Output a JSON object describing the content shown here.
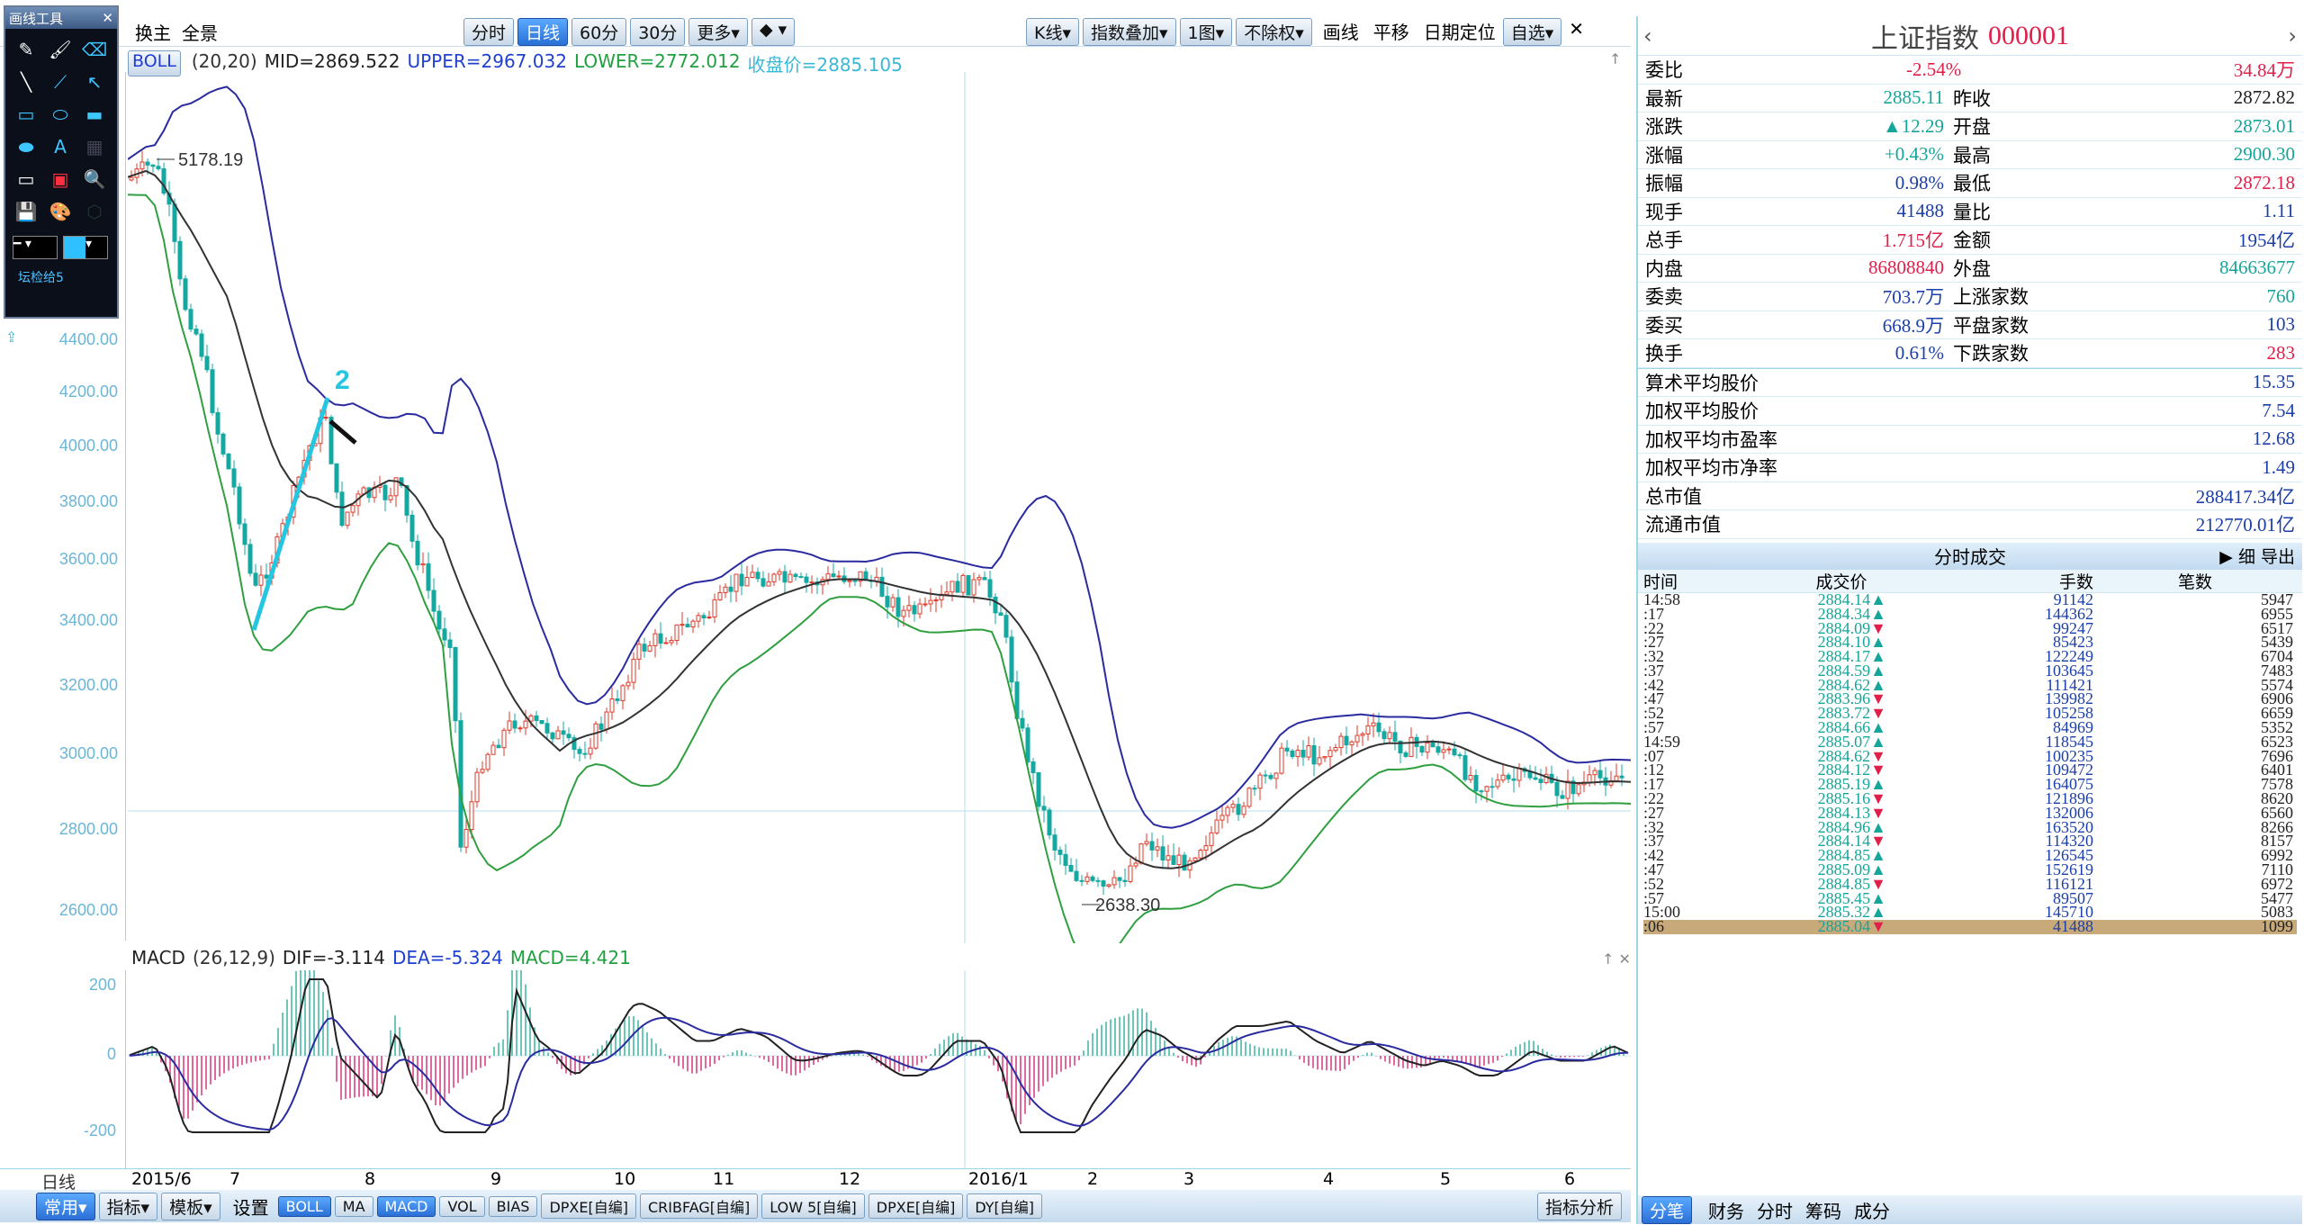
{
  "toolbar_top": {
    "left_tabs": [
      "换主",
      "全景"
    ],
    "period_tabs": [
      "分时",
      "日线",
      "60分",
      "30分",
      "更多▾",
      "◆ ▾"
    ],
    "right_tabs": [
      "K线▾",
      "指数叠加▾",
      "1图▾",
      "不除权▾",
      "画线",
      "平移",
      "日期定位",
      "自选▾"
    ]
  },
  "indicator_line": {
    "name": "BOLL",
    "params": "(20,20)",
    "mid": "MID=2869.522",
    "upper": "UPPER=2967.032",
    "lower": "LOWER=2772.012",
    "close": "收盘价=2885.105",
    "sym_color": "#1e3cd8",
    "upper_color": "#2040d0",
    "lower_color": "#20a040"
  },
  "drawing_palette": {
    "title": "画线工具",
    "footer": "坛检给5"
  },
  "main_chart": {
    "y_labels": [
      "4400.00",
      "4200.00",
      "4000.00",
      "3800.00",
      "3600.00",
      "3400.00",
      "3200.00",
      "3000.00",
      "2800.00",
      "2600.00"
    ],
    "annotations": {
      "high_label": "5178.19",
      "low_label": "2638.30",
      "marker_label": "2"
    }
  },
  "macd": {
    "name": "MACD",
    "params": "(26,12,9)",
    "dif": "DIF=-3.114",
    "dea": "DEA=-5.324",
    "macd": "MACD=4.421",
    "y_labels": [
      "200",
      "0",
      "-200"
    ]
  },
  "x_axis": {
    "period": "日线",
    "labels": [
      "2015/6",
      "7",
      "8",
      "9",
      "10",
      "11",
      "12",
      "2016/1",
      "2",
      "3",
      "4",
      "5",
      "6"
    ]
  },
  "bottom_tabs": {
    "left": [
      "常用▾",
      "指标▾",
      "模板▾",
      "设置"
    ],
    "indicators": [
      "BOLL",
      "MA",
      "MACD",
      "VOL",
      "BIAS",
      "DPXE[自编]",
      "CRIBFAG[自编]",
      "LOW 5[自编]",
      "DPXE[自编]",
      "DY[自编]"
    ],
    "right": "指标分析"
  },
  "quote": {
    "title": "上证指数",
    "code": "000001",
    "weibi": {
      "label": "委比",
      "value": "-2.54%",
      "value2": "34.84万"
    },
    "rows": [
      {
        "l1": "最新",
        "v1": "2885.11",
        "l2": "昨收",
        "v2": "2872.82",
        "c1": "green",
        "c2": "dark"
      },
      {
        "l1": "涨跌",
        "v1": "▲12.29",
        "l2": "开盘",
        "v2": "2873.01",
        "c1": "green",
        "c2": "green"
      },
      {
        "l1": "涨幅",
        "v1": "+0.43%",
        "l2": "最高",
        "v2": "2900.30",
        "c1": "green",
        "c2": "green"
      },
      {
        "l1": "振幅",
        "v1": "0.98%",
        "l2": "最低",
        "v2": "2872.18",
        "c1": "blue",
        "c2": "red"
      },
      {
        "l1": "现手",
        "v1": "41488",
        "l2": "量比",
        "v2": "1.11",
        "c1": "blue",
        "c2": "blue"
      },
      {
        "l1": "总手",
        "v1": "1.715亿",
        "l2": "金额",
        "v2": "1954亿",
        "c1": "red",
        "c2": "blue"
      },
      {
        "l1": "内盘",
        "v1": "86808840",
        "l2": "外盘",
        "v2": "84663677",
        "c1": "red",
        "c2": "green"
      },
      {
        "l1": "委卖",
        "v1": "703.7万",
        "l2": "上涨家数",
        "v2": "760",
        "c1": "blue",
        "c2": "green"
      },
      {
        "l1": "委买",
        "v1": "668.9万",
        "l2": "平盘家数",
        "v2": "103",
        "c1": "blue",
        "c2": "blue"
      },
      {
        "l1": "换手",
        "v1": "0.61%",
        "l2": "下跌家数",
        "v2": "283",
        "c1": "blue",
        "c2": "red"
      }
    ],
    "stats": [
      {
        "label": "算术平均股价",
        "value": "15.35"
      },
      {
        "label": "加权平均股价",
        "value": "7.54"
      },
      {
        "label": "加权平均市盈率",
        "value": "12.68"
      },
      {
        "label": "加权平均市净率",
        "value": "1.49"
      },
      {
        "label": "总市值",
        "value": "288417.34亿"
      },
      {
        "label": "流通市值",
        "value": "212770.01亿"
      }
    ]
  },
  "trades": {
    "title": "分时成交",
    "actions": "▶ 细 导出",
    "headers": [
      "时间",
      "成交价",
      "手数",
      "笔数"
    ],
    "rows": [
      {
        "t": "14:58",
        "p": "2884.14",
        "d": "▲",
        "v": "91142",
        "n": "5947"
      },
      {
        "t": ":17",
        "p": "2884.34",
        "d": "▲",
        "v": "144362",
        "n": "6955"
      },
      {
        "t": ":22",
        "p": "2884.09",
        "d": "▼",
        "v": "99247",
        "n": "6517"
      },
      {
        "t": ":27",
        "p": "2884.10",
        "d": "▲",
        "v": "85423",
        "n": "5439"
      },
      {
        "t": ":32",
        "p": "2884.17",
        "d": "▲",
        "v": "122249",
        "n": "6704"
      },
      {
        "t": ":37",
        "p": "2884.59",
        "d": "▲",
        "v": "103645",
        "n": "7483"
      },
      {
        "t": ":42",
        "p": "2884.62",
        "d": "▲",
        "v": "111421",
        "n": "5574"
      },
      {
        "t": ":47",
        "p": "2883.96",
        "d": "▼",
        "v": "139982",
        "n": "6906"
      },
      {
        "t": ":52",
        "p": "2883.72",
        "d": "▼",
        "v": "105258",
        "n": "6659"
      },
      {
        "t": ":57",
        "p": "2884.66",
        "d": "▲",
        "v": "84969",
        "n": "5352"
      },
      {
        "t": "14:59",
        "p": "2885.07",
        "d": "▲",
        "v": "118545",
        "n": "6523"
      },
      {
        "t": ":07",
        "p": "2884.62",
        "d": "▼",
        "v": "100235",
        "n": "7696"
      },
      {
        "t": ":12",
        "p": "2884.12",
        "d": "▼",
        "v": "109472",
        "n": "6401"
      },
      {
        "t": ":17",
        "p": "2885.19",
        "d": "▲",
        "v": "164075",
        "n": "7578"
      },
      {
        "t": ":22",
        "p": "2885.16",
        "d": "▼",
        "v": "121896",
        "n": "8620"
      },
      {
        "t": ":27",
        "p": "2884.13",
        "d": "▼",
        "v": "132006",
        "n": "6560"
      },
      {
        "t": ":32",
        "p": "2884.96",
        "d": "▲",
        "v": "163520",
        "n": "8266"
      },
      {
        "t": ":37",
        "p": "2884.14",
        "d": "▼",
        "v": "114320",
        "n": "8157"
      },
      {
        "t": ":42",
        "p": "2884.85",
        "d": "▲",
        "v": "126545",
        "n": "6992"
      },
      {
        "t": ":47",
        "p": "2885.09",
        "d": "▲",
        "v": "152619",
        "n": "7110"
      },
      {
        "t": ":52",
        "p": "2884.85",
        "d": "▼",
        "v": "116121",
        "n": "6972"
      },
      {
        "t": ":57",
        "p": "2885.45",
        "d": "▲",
        "v": "89507",
        "n": "5477"
      },
      {
        "t": "15:00",
        "p": "2885.32",
        "d": "▲",
        "v": "145710",
        "n": "5083"
      },
      {
        "t": ":06",
        "p": "2885.04",
        "d": "▼",
        "v": "41488",
        "n": "1099"
      }
    ]
  },
  "right_tabs": [
    "分笔",
    "财务",
    "分时",
    "筹码",
    "成分"
  ]
}
